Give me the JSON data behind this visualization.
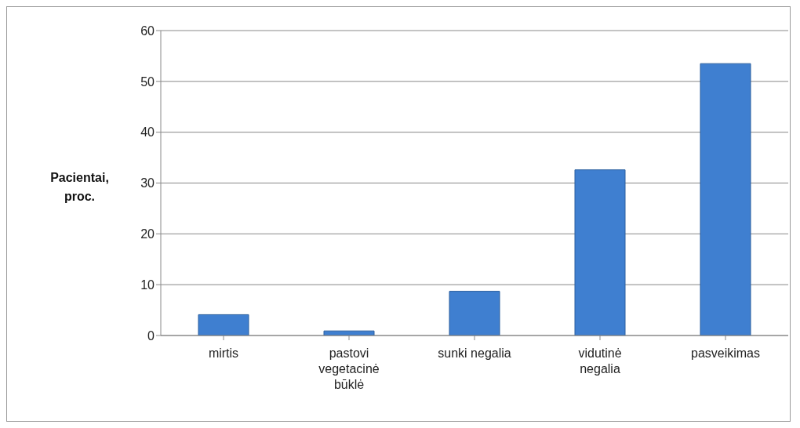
{
  "chart_data": {
    "type": "bar",
    "ylabel": "Pacientai, proc.",
    "categories": [
      "mirtis",
      "pastovi vegetacinė būklė",
      "sunki negalia",
      "vidutinė negalia",
      "pasveikimas"
    ],
    "values": [
      4.1,
      0.9,
      8.7,
      32.6,
      53.5
    ],
    "color": "#3f7fd0",
    "ylim": [
      0,
      60
    ],
    "yticks": [
      0,
      10,
      20,
      30,
      40,
      50,
      60
    ],
    "grid": "y"
  }
}
